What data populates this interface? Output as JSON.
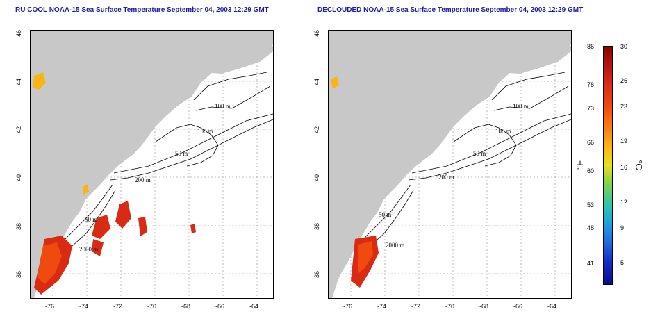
{
  "titles": {
    "left": "RU COOL NOAA-15 Sea Surface Temperature September 04, 2003 12:29 GMT",
    "right": "DECLOUDED NOAA-15 Sea Surface Temperature September 04, 2003 12:29 GMT"
  },
  "axes": {
    "lon_ticks": [
      "-76",
      "-74",
      "-72",
      "-70",
      "-68",
      "-66",
      "-64"
    ],
    "lat_ticks": [
      "46",
      "44",
      "42",
      "40",
      "38",
      "36"
    ],
    "lon_range": [
      -77,
      -63
    ],
    "lat_range": [
      35,
      46
    ]
  },
  "contour_labels": {
    "left": [
      "100 m",
      "100 m",
      "50 m",
      "200 m",
      "50 m",
      "2000 m"
    ],
    "right": [
      "100 m",
      "100 m",
      "50 m",
      "200 m",
      "50 m",
      "2000 m"
    ]
  },
  "colorbar": {
    "fahrenheit": [
      "86",
      "78",
      "73",
      "66",
      "60",
      "53",
      "48",
      "41"
    ],
    "celsius": [
      "30",
      "26",
      "23",
      "19",
      "16",
      "12",
      "9",
      "5"
    ],
    "unit_f": "°F",
    "unit_c": "°C",
    "range_c": [
      2,
      30
    ]
  },
  "colors": {
    "land": "#c8c8c8",
    "ocean": "#ffffff",
    "warm_sst": "#d92b14",
    "hot_sst": "#f04a0f",
    "title": "#1a1aa6",
    "grid": "#aaaaaa"
  }
}
